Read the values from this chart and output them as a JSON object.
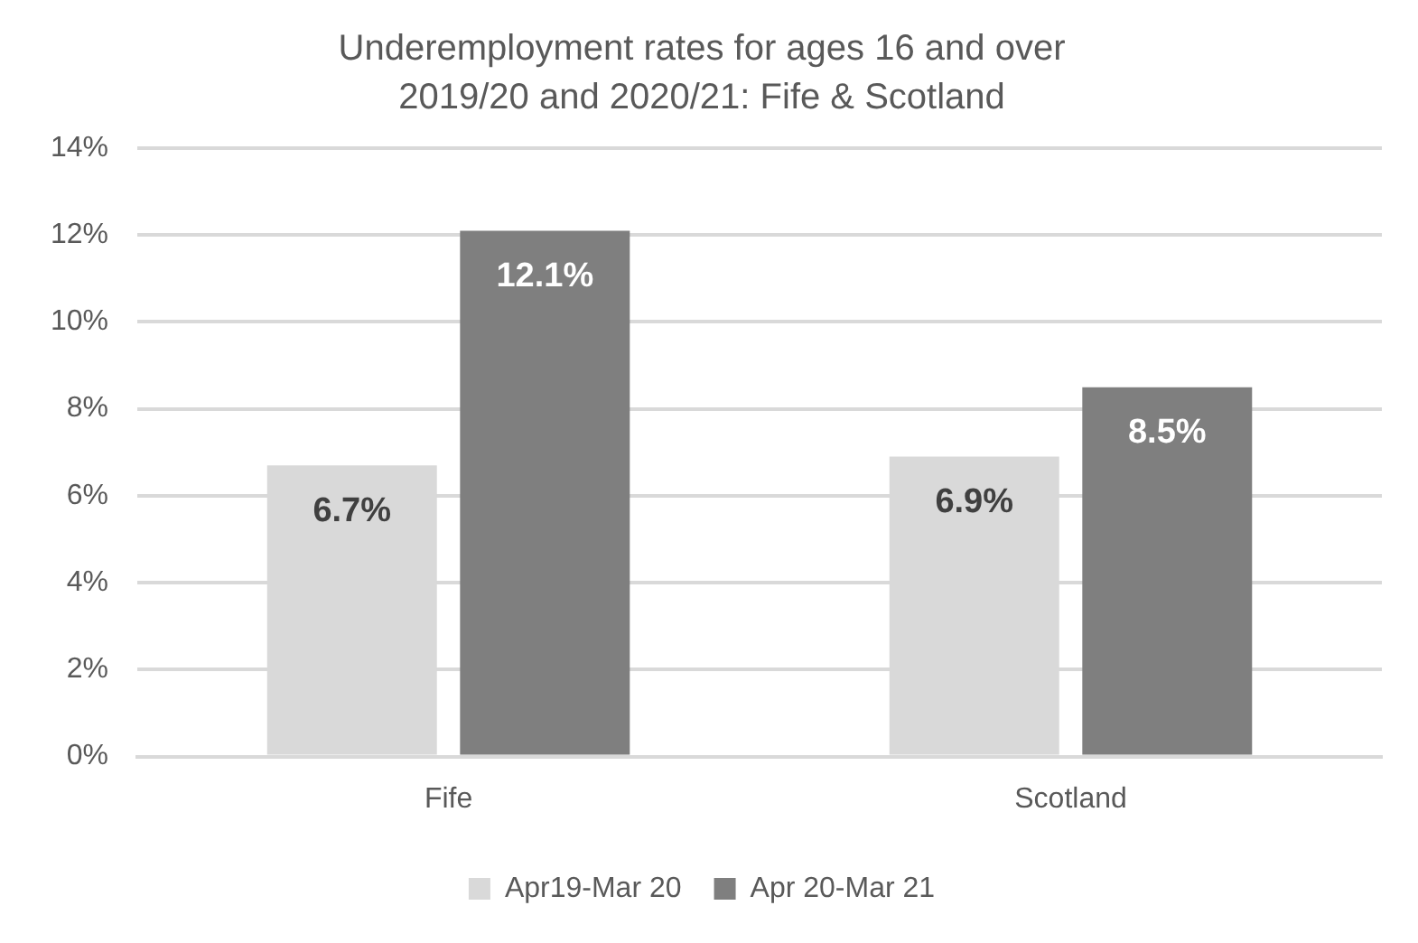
{
  "chart_data": {
    "type": "bar",
    "title": "Underemployment rates for ages 16 and over\n2019/20 and 2020/21: Fife & Scotland",
    "categories": [
      "Fife",
      "Scotland"
    ],
    "series": [
      {
        "name": "Apr19-Mar 20",
        "color": "#d9d9d9",
        "values": [
          6.7,
          6.9
        ],
        "value_labels": [
          "6.7%",
          "6.9%"
        ]
      },
      {
        "name": "Apr 20-Mar 21",
        "color": "#7f7f7f",
        "values": [
          12.1,
          8.5
        ],
        "value_labels": [
          "12.1%",
          "8.5%"
        ]
      }
    ],
    "ylim": [
      0,
      14
    ],
    "yticks": [
      {
        "value": 0,
        "label": "0%"
      },
      {
        "value": 2,
        "label": "2%"
      },
      {
        "value": 4,
        "label": "4%"
      },
      {
        "value": 6,
        "label": "6%"
      },
      {
        "value": 8,
        "label": "8%"
      },
      {
        "value": 10,
        "label": "10%"
      },
      {
        "value": 12,
        "label": "12%"
      },
      {
        "value": 14,
        "label": "14%"
      }
    ],
    "grid": "y",
    "legend": "bottom"
  }
}
